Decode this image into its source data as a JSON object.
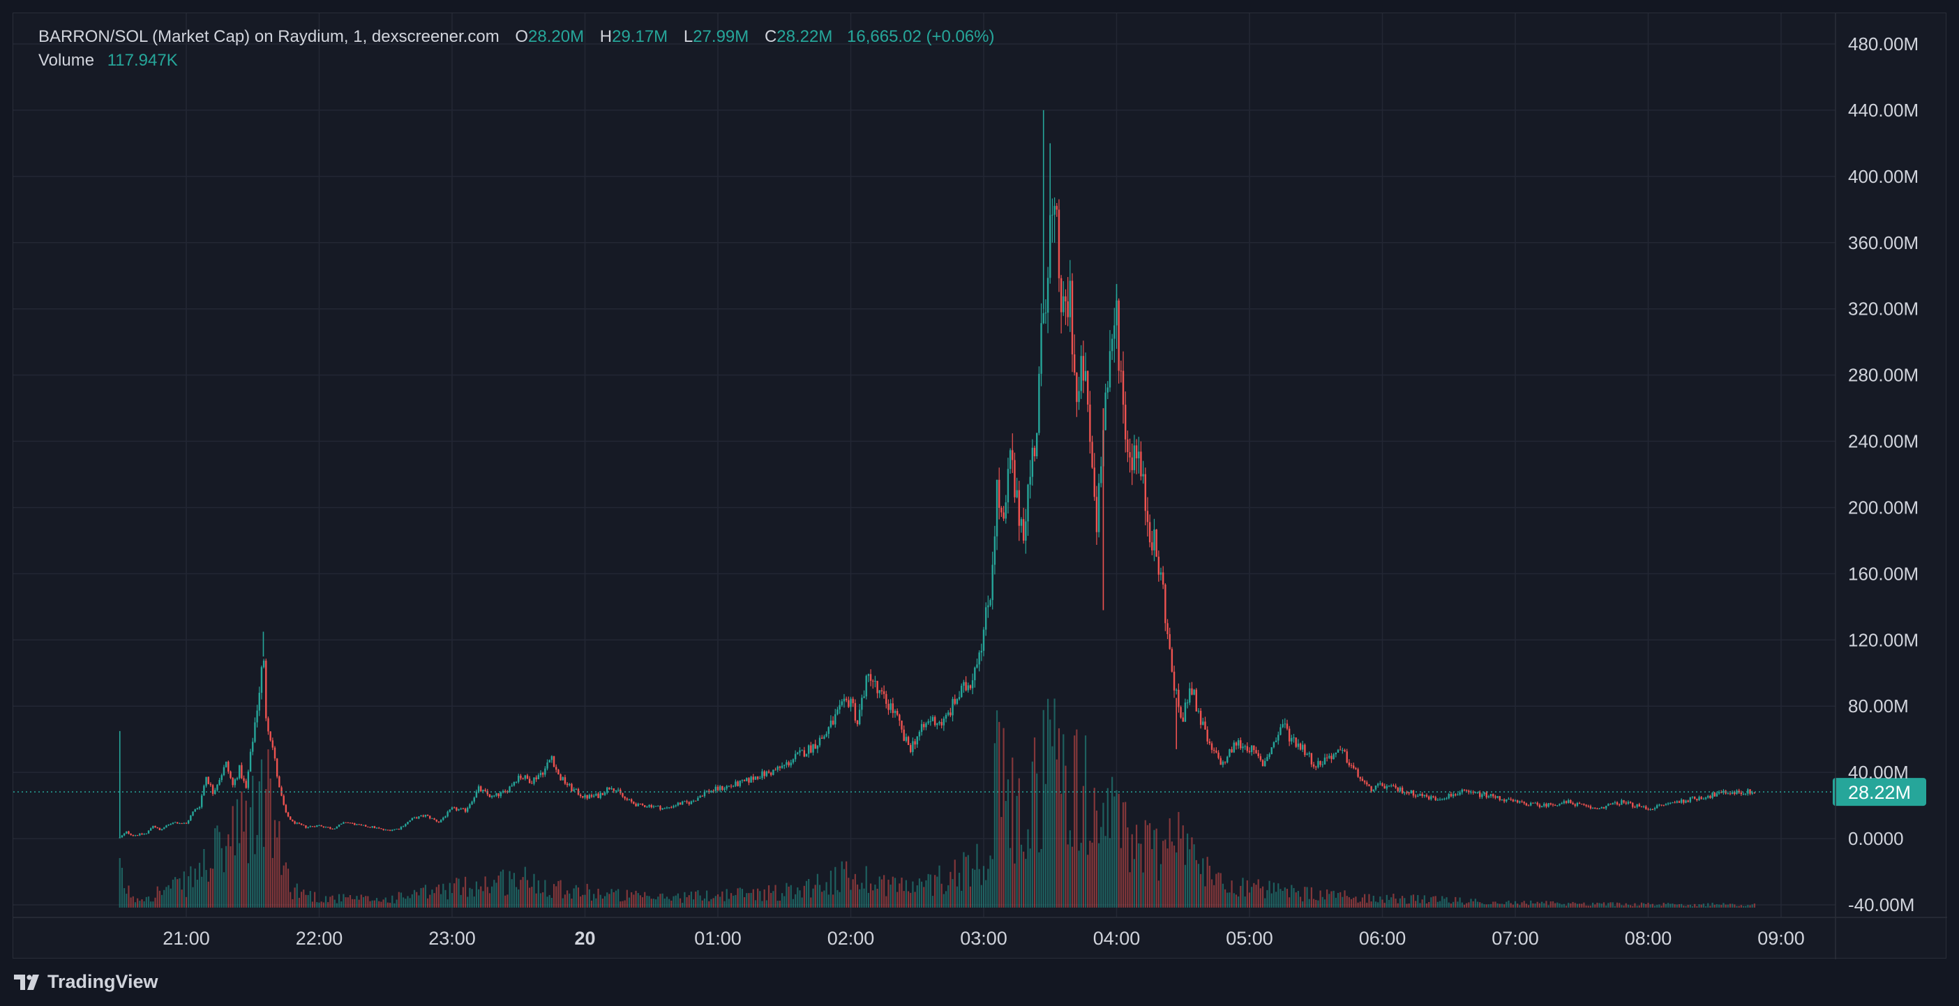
{
  "legend": {
    "title": "BARRON/SOL (Market Cap) on Raydium, 1, dexscreener.com",
    "o_label": "O",
    "o_value": "28.20M",
    "h_label": "H",
    "h_value": "29.17M",
    "l_label": "L",
    "l_value": "27.99M",
    "c_label": "C",
    "c_value": "28.22M",
    "change": "16,665.02 (+0.06%)",
    "volume_label": "Volume",
    "volume_value": "117.947K"
  },
  "price_badge": "28.22M",
  "branding": "TradingView",
  "colors": {
    "up": "#26a69a",
    "down": "#ef5350",
    "background": "#161a25",
    "grid": "#232734",
    "text": "#d1d4dc"
  },
  "chart_data": {
    "type": "candlestick",
    "y_axis": {
      "min": -40,
      "max": 480,
      "unit": "M",
      "ticks": [
        "480.00M",
        "440.00M",
        "400.00M",
        "360.00M",
        "320.00M",
        "280.00M",
        "240.00M",
        "200.00M",
        "160.00M",
        "120.00M",
        "80.00M",
        "40.00M",
        "0.0000",
        "-40.00M"
      ],
      "tick_values": [
        480,
        440,
        400,
        360,
        320,
        280,
        240,
        200,
        160,
        120,
        80,
        40,
        0,
        -40
      ]
    },
    "x_axis": {
      "ticks": [
        "21:00",
        "22:00",
        "23:00",
        "20",
        "01:00",
        "02:00",
        "03:00",
        "04:00",
        "05:00",
        "06:00",
        "07:00",
        "08:00",
        "09:00"
      ],
      "tick_hours": [
        21,
        22,
        23,
        24,
        25,
        26,
        27,
        28,
        29,
        30,
        31,
        32,
        33
      ],
      "bold_ticks": [
        "20"
      ],
      "range_hours": [
        20.28,
        33.2
      ]
    },
    "last_price": 28.22,
    "grid": true,
    "series": [
      {
        "name": "Market Cap",
        "close_path": [
          [
            20.5,
            0.5
          ],
          [
            20.55,
            4
          ],
          [
            20.6,
            2
          ],
          [
            20.7,
            3
          ],
          [
            20.75,
            8
          ],
          [
            20.8,
            5
          ],
          [
            20.9,
            10
          ],
          [
            21.0,
            9
          ],
          [
            21.05,
            16
          ],
          [
            21.1,
            20
          ],
          [
            21.15,
            38
          ],
          [
            21.2,
            28
          ],
          [
            21.3,
            45
          ],
          [
            21.35,
            32
          ],
          [
            21.4,
            42
          ],
          [
            21.45,
            30
          ],
          [
            21.5,
            60
          ],
          [
            21.55,
            90
          ],
          [
            21.58,
            110
          ],
          [
            21.6,
            75
          ],
          [
            21.65,
            55
          ],
          [
            21.7,
            30
          ],
          [
            21.75,
            15
          ],
          [
            21.8,
            10
          ],
          [
            21.9,
            7
          ],
          [
            22.0,
            8
          ],
          [
            22.1,
            6
          ],
          [
            22.2,
            10
          ],
          [
            22.3,
            8
          ],
          [
            22.4,
            7
          ],
          [
            22.5,
            5
          ],
          [
            22.6,
            6
          ],
          [
            22.7,
            12
          ],
          [
            22.8,
            14
          ],
          [
            22.9,
            10
          ],
          [
            23.0,
            18
          ],
          [
            23.1,
            17
          ],
          [
            23.2,
            30
          ],
          [
            23.3,
            25
          ],
          [
            23.4,
            28
          ],
          [
            23.5,
            38
          ],
          [
            23.6,
            35
          ],
          [
            23.7,
            42
          ],
          [
            23.75,
            50
          ],
          [
            23.8,
            38
          ],
          [
            23.9,
            30
          ],
          [
            24.0,
            25
          ],
          [
            24.1,
            26
          ],
          [
            24.2,
            32
          ],
          [
            24.3,
            24
          ],
          [
            24.4,
            20
          ],
          [
            24.5,
            20
          ],
          [
            24.6,
            18
          ],
          [
            24.7,
            21
          ],
          [
            24.8,
            22
          ],
          [
            24.9,
            28
          ],
          [
            25.0,
            30
          ],
          [
            25.1,
            32
          ],
          [
            25.2,
            34
          ],
          [
            25.3,
            38
          ],
          [
            25.4,
            40
          ],
          [
            25.5,
            44
          ],
          [
            25.6,
            50
          ],
          [
            25.7,
            55
          ],
          [
            25.8,
            62
          ],
          [
            25.9,
            75
          ],
          [
            26.0,
            85
          ],
          [
            26.05,
            70
          ],
          [
            26.1,
            90
          ],
          [
            26.15,
            100
          ],
          [
            26.2,
            88
          ],
          [
            26.3,
            80
          ],
          [
            26.35,
            72
          ],
          [
            26.4,
            60
          ],
          [
            26.45,
            55
          ],
          [
            26.5,
            62
          ],
          [
            26.6,
            72
          ],
          [
            26.7,
            70
          ],
          [
            26.8,
            85
          ],
          [
            26.9,
            95
          ],
          [
            27.0,
            125
          ],
          [
            27.05,
            150
          ],
          [
            27.1,
            210
          ],
          [
            27.15,
            185
          ],
          [
            27.2,
            230
          ],
          [
            27.25,
            200
          ],
          [
            27.3,
            190
          ],
          [
            27.4,
            250
          ],
          [
            27.45,
            320
          ],
          [
            27.5,
            370
          ],
          [
            27.55,
            360
          ],
          [
            27.6,
            310
          ],
          [
            27.65,
            330
          ],
          [
            27.7,
            260
          ],
          [
            27.75,
            285
          ],
          [
            27.8,
            240
          ],
          [
            27.85,
            190
          ],
          [
            27.9,
            260
          ],
          [
            27.95,
            280
          ],
          [
            28.0,
            320
          ],
          [
            28.05,
            260
          ],
          [
            28.1,
            230
          ],
          [
            28.15,
            240
          ],
          [
            28.2,
            210
          ],
          [
            28.25,
            190
          ],
          [
            28.3,
            170
          ],
          [
            28.35,
            150
          ],
          [
            28.4,
            110
          ],
          [
            28.45,
            85
          ],
          [
            28.5,
            70
          ],
          [
            28.55,
            95
          ],
          [
            28.6,
            80
          ],
          [
            28.7,
            55
          ],
          [
            28.8,
            45
          ],
          [
            28.9,
            58
          ],
          [
            29.0,
            55
          ],
          [
            29.1,
            45
          ],
          [
            29.2,
            60
          ],
          [
            29.25,
            70
          ],
          [
            29.3,
            62
          ],
          [
            29.4,
            55
          ],
          [
            29.5,
            44
          ],
          [
            29.6,
            50
          ],
          [
            29.7,
            52
          ],
          [
            29.8,
            40
          ],
          [
            29.9,
            30
          ],
          [
            30.0,
            32
          ],
          [
            30.2,
            28
          ],
          [
            30.4,
            24
          ],
          [
            30.6,
            28
          ],
          [
            30.8,
            26
          ],
          [
            31.0,
            22
          ],
          [
            31.2,
            20
          ],
          [
            31.4,
            22
          ],
          [
            31.6,
            18
          ],
          [
            31.8,
            22
          ],
          [
            32.0,
            18
          ],
          [
            32.2,
            22
          ],
          [
            32.4,
            25
          ],
          [
            32.6,
            28
          ],
          [
            32.8,
            28.22
          ]
        ],
        "wick_extremes": [
          [
            20.5,
            65
          ],
          [
            21.58,
            125
          ],
          [
            27.45,
            440
          ],
          [
            27.5,
            420
          ],
          [
            28.0,
            335
          ],
          [
            27.9,
            138
          ],
          [
            28.45,
            54
          ]
        ]
      },
      {
        "name": "Volume",
        "volume_path": [
          [
            20.5,
            0.2
          ],
          [
            20.6,
            0.05
          ],
          [
            21.0,
            0.15
          ],
          [
            21.5,
            0.55
          ],
          [
            21.6,
            0.75
          ],
          [
            21.7,
            0.35
          ],
          [
            21.8,
            0.12
          ],
          [
            22.0,
            0.06
          ],
          [
            22.5,
            0.05
          ],
          [
            23.0,
            0.12
          ],
          [
            23.5,
            0.18
          ],
          [
            24.0,
            0.1
          ],
          [
            24.5,
            0.06
          ],
          [
            25.0,
            0.08
          ],
          [
            25.5,
            0.1
          ],
          [
            26.0,
            0.2
          ],
          [
            26.5,
            0.12
          ],
          [
            27.0,
            0.3
          ],
          [
            27.1,
            0.8
          ],
          [
            27.3,
            0.5
          ],
          [
            27.5,
            1.0
          ],
          [
            27.7,
            0.75
          ],
          [
            27.9,
            0.6
          ],
          [
            28.1,
            0.45
          ],
          [
            28.3,
            0.35
          ],
          [
            28.45,
            0.55
          ],
          [
            28.6,
            0.25
          ],
          [
            29.0,
            0.12
          ],
          [
            29.5,
            0.08
          ],
          [
            30.0,
            0.06
          ],
          [
            31.0,
            0.03
          ],
          [
            32.0,
            0.02
          ],
          [
            32.8,
            0.02
          ]
        ]
      }
    ]
  }
}
